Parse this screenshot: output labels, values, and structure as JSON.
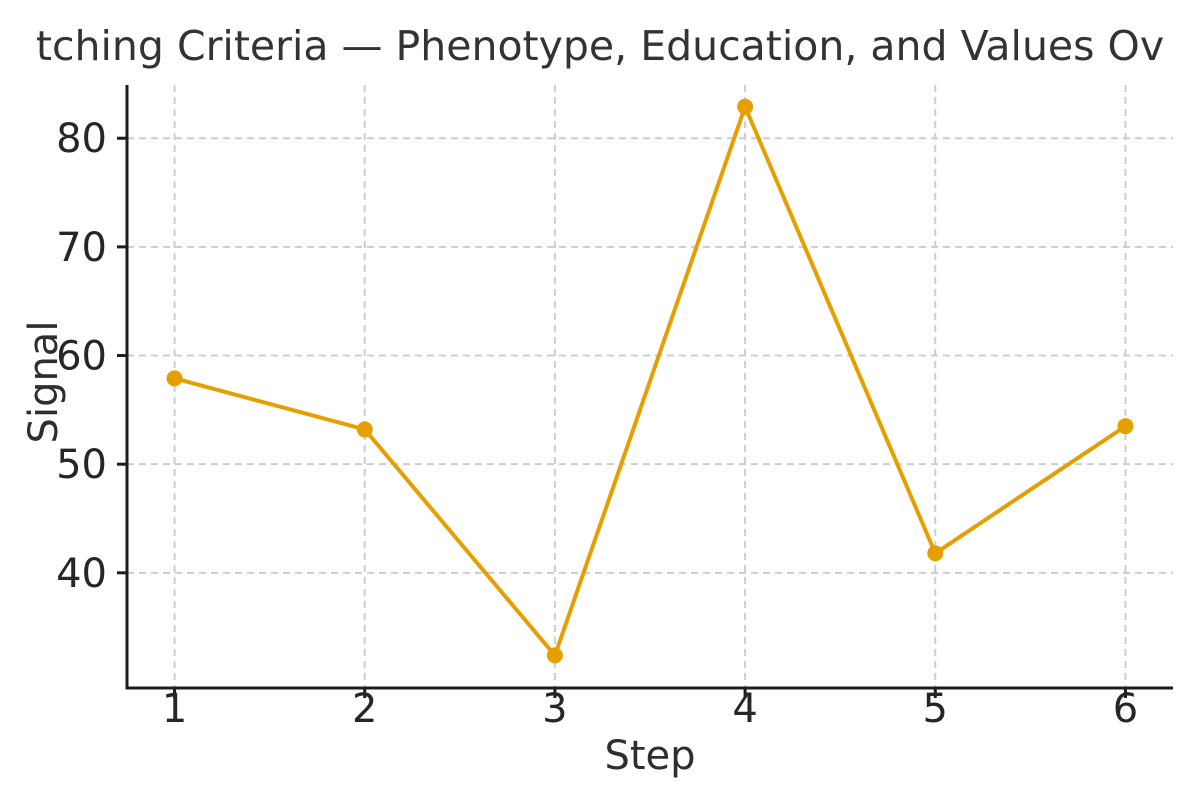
{
  "chart_data": {
    "type": "line",
    "title": "tching Criteria — Phenotype, Education, and Values Ov",
    "xlabel": "Step",
    "ylabel": "Signal",
    "x": [
      1,
      2,
      3,
      4,
      5,
      6
    ],
    "series": [
      {
        "name": "Signal",
        "values": [
          57.9,
          53.2,
          32.4,
          82.9,
          41.8,
          53.5
        ]
      }
    ],
    "xticks": [
      "1",
      "2",
      "3",
      "4",
      "5",
      "6"
    ],
    "yticks": [
      "40",
      "50",
      "60",
      "70",
      "80"
    ],
    "xlim": [
      0.75,
      6.25
    ],
    "ylim": [
      29.4,
      84.9
    ],
    "grid": "dashed",
    "legend": "none",
    "line_color": "#E69F00",
    "marker": "circle",
    "marker_color": "#E69F00",
    "grid_color": "#cdcdcd",
    "spine_color": "#1c1c1c",
    "tick_text_color": "#262626",
    "title_color": "#333333",
    "background_color": "#ffffff"
  }
}
